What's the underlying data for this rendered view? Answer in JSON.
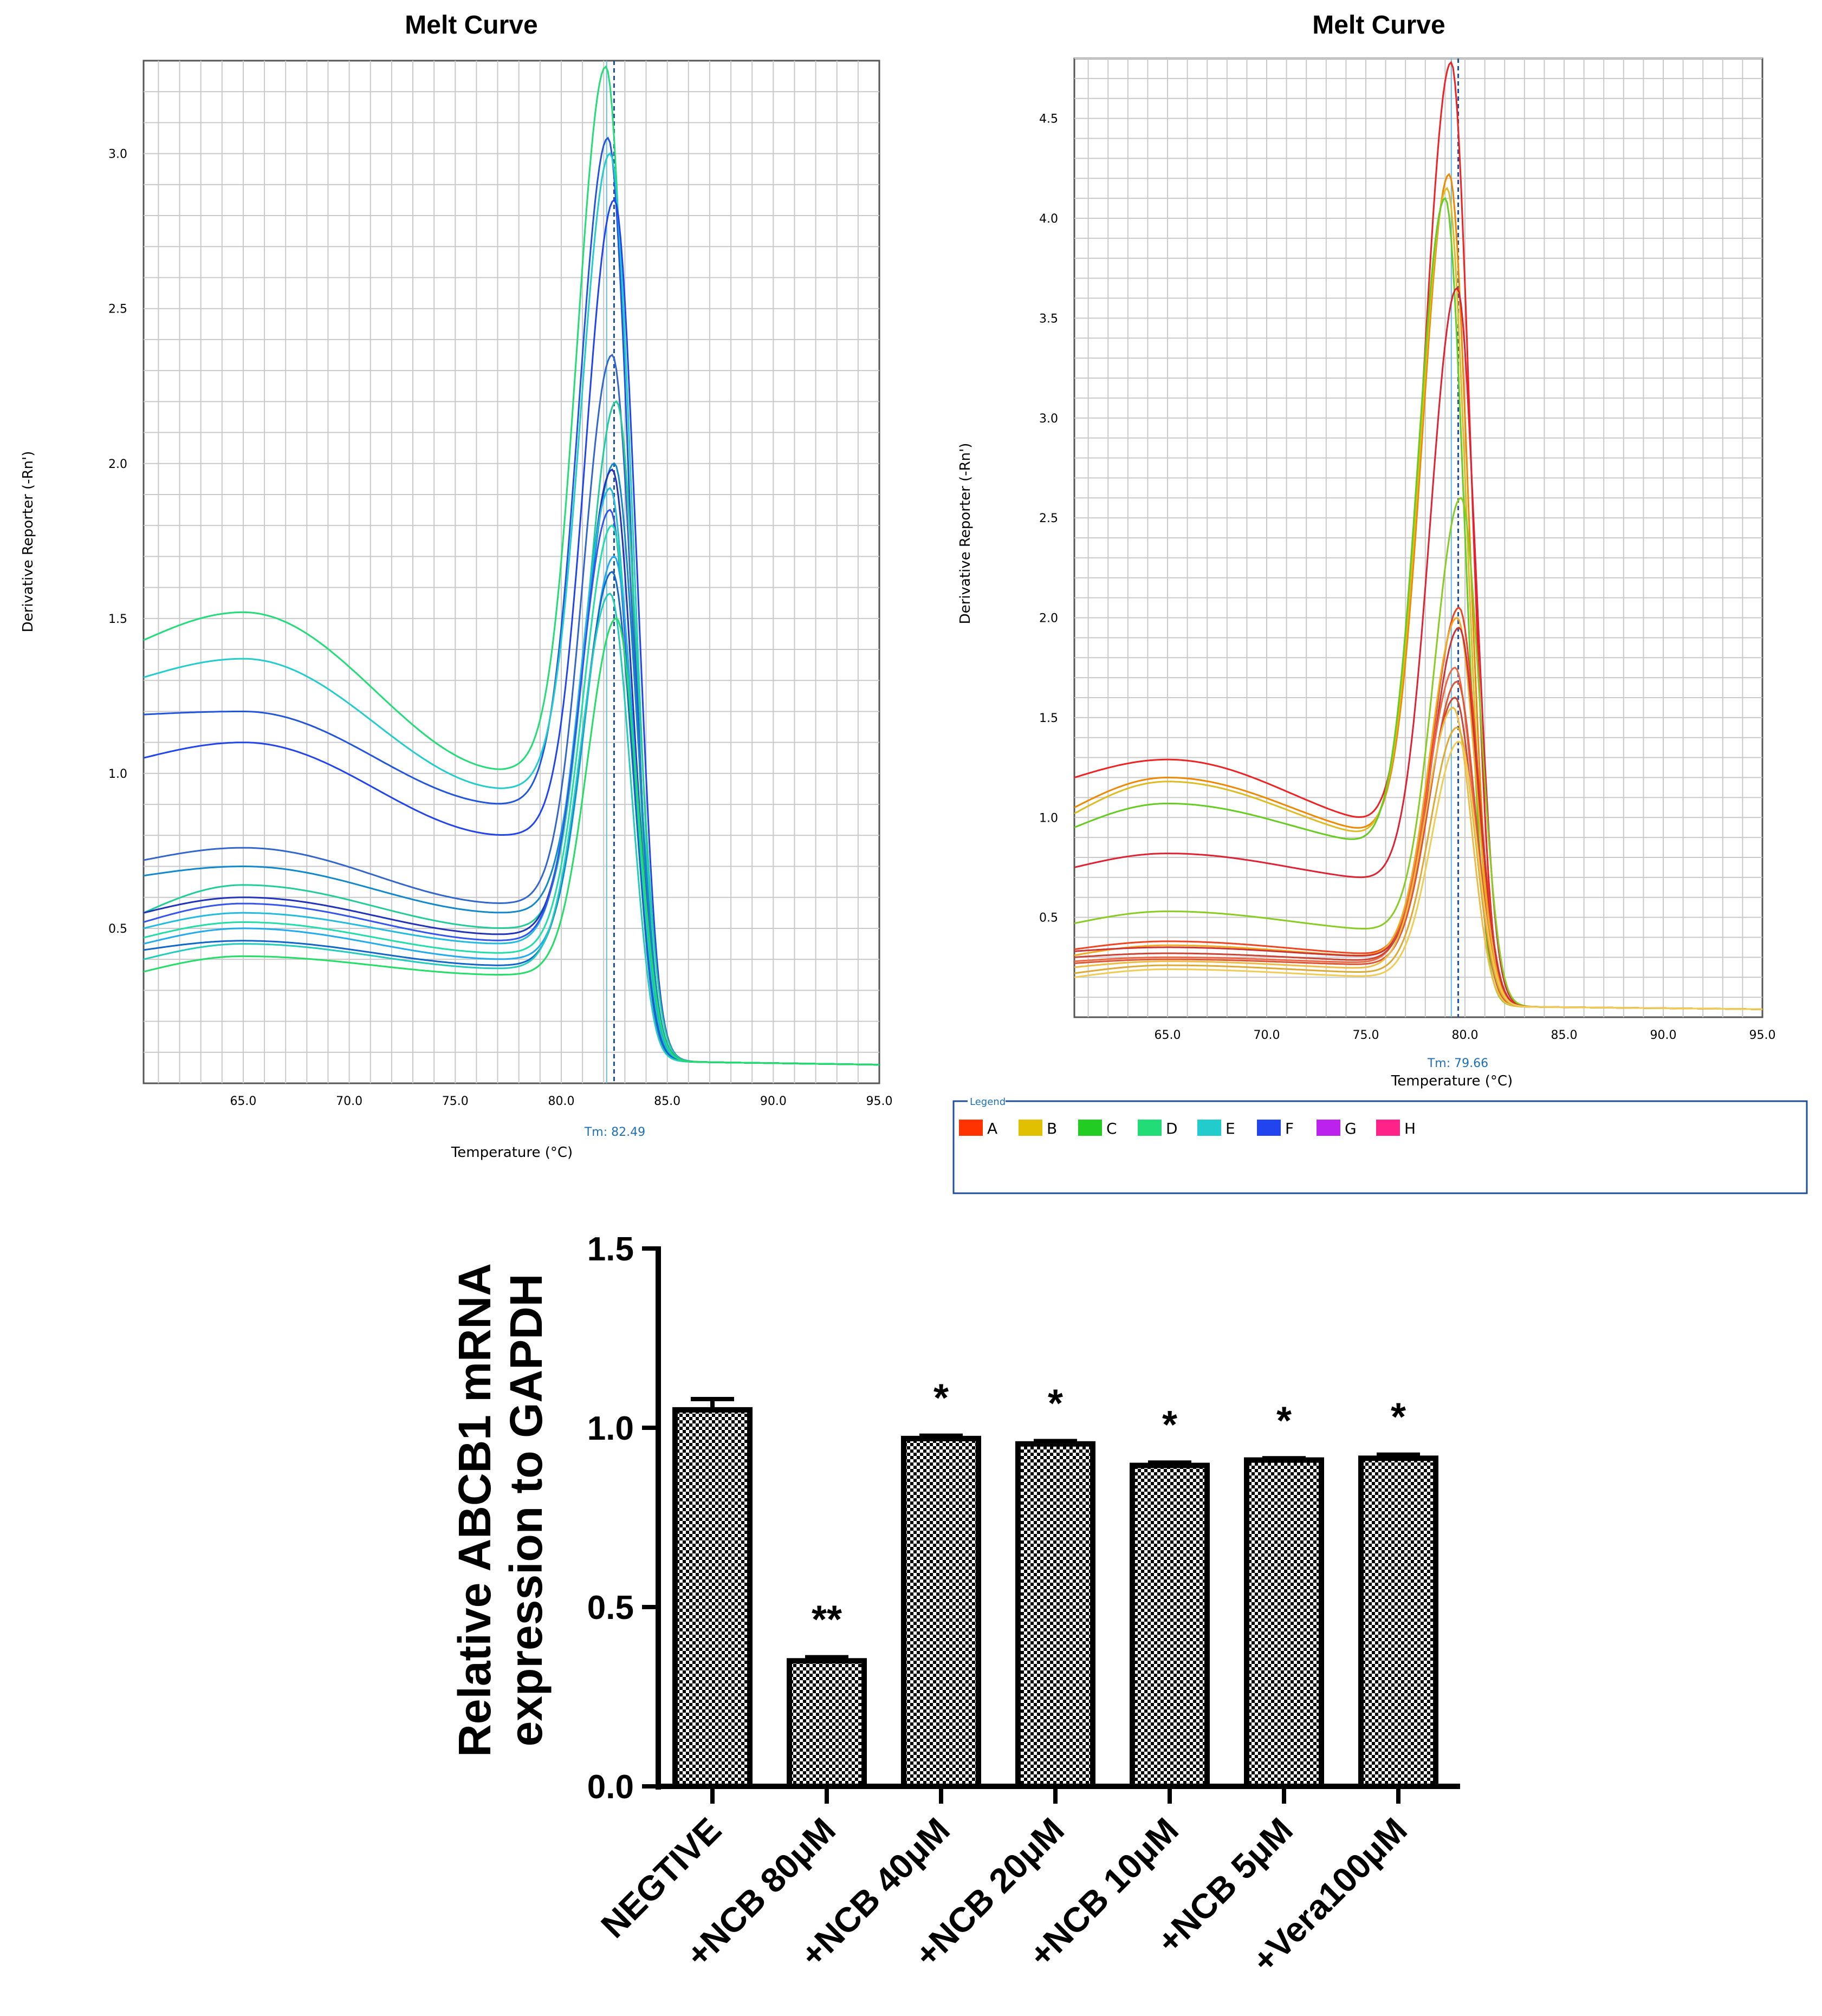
{
  "charts": [
    {
      "title": "Melt Curve",
      "xlabel": "Temperature (°C)",
      "ylabel": "Derivative Reporter (-Rn')",
      "tm_label": "Tm: 82.49"
    },
    {
      "title": "Melt Curve",
      "xlabel": "Temperature (°C)",
      "ylabel": "Derivative Reporter (-Rn')",
      "tm_label": "Tm: 79.66"
    },
    {
      "ylabel_line1": "Relative ABCB1 mRNA",
      "ylabel_line2": "expression to GAPDH"
    }
  ],
  "legend": {
    "title": "Legend",
    "items": [
      {
        "label": "A",
        "color": "#ff3300"
      },
      {
        "label": "B",
        "color": "#e0c000"
      },
      {
        "label": "C",
        "color": "#22cc22"
      },
      {
        "label": "D",
        "color": "#22dd77"
      },
      {
        "label": "E",
        "color": "#22cccc"
      },
      {
        "label": "F",
        "color": "#2244ee"
      },
      {
        "label": "G",
        "color": "#bb22ee"
      },
      {
        "label": "H",
        "color": "#ff2288"
      }
    ]
  },
  "chart_data": [
    {
      "type": "line",
      "title": "Melt Curve",
      "xlabel": "Temperature (°C)",
      "ylabel": "Derivative Reporter (-Rn')",
      "xlim": [
        60.3,
        95.0
      ],
      "ylim": [
        0.0,
        3.3
      ],
      "xticks": [
        "65.0",
        "70.0",
        "75.0",
        "80.0",
        "85.0",
        "90.0",
        "95.0"
      ],
      "yticks": [
        "0.5",
        "1.0",
        "1.5",
        "2.0",
        "2.5",
        "3.0"
      ],
      "grid": true,
      "tm": 82.49,
      "tm_label": "Tm: 82.49",
      "series": [
        {
          "color": "#22dd77",
          "peak_x": 82.1,
          "peak": 3.28,
          "base_start": 1.43,
          "base_mid": 1.52,
          "base_min": 1.01
        },
        {
          "color": "#2255dd",
          "peak_x": 82.2,
          "peak": 3.05,
          "base_start": 1.19,
          "base_mid": 1.2,
          "base_min": 0.9
        },
        {
          "color": "#22cccc",
          "peak_x": 82.3,
          "peak": 3.0,
          "base_start": 1.31,
          "base_mid": 1.37,
          "base_min": 0.95
        },
        {
          "color": "#2244ee",
          "peak_x": 82.5,
          "peak": 2.85,
          "base_start": 1.05,
          "base_mid": 1.1,
          "base_min": 0.8
        },
        {
          "color": "#3366cc",
          "peak_x": 82.4,
          "peak": 2.35,
          "base_start": 0.72,
          "base_mid": 0.76,
          "base_min": 0.58
        },
        {
          "color": "#22cc99",
          "peak_x": 82.6,
          "peak": 2.2,
          "base_start": 0.55,
          "base_mid": 0.64,
          "base_min": 0.5
        },
        {
          "color": "#1188cc",
          "peak_x": 82.5,
          "peak": 2.0,
          "base_start": 0.67,
          "base_mid": 0.7,
          "base_min": 0.55
        },
        {
          "color": "#2233bb",
          "peak_x": 82.4,
          "peak": 1.98,
          "base_start": 0.55,
          "base_mid": 0.6,
          "base_min": 0.48
        },
        {
          "color": "#22bbdd",
          "peak_x": 82.3,
          "peak": 1.92,
          "base_start": 0.5,
          "base_mid": 0.55,
          "base_min": 0.45
        },
        {
          "color": "#3355ee",
          "peak_x": 82.3,
          "peak": 1.85,
          "base_start": 0.52,
          "base_mid": 0.58,
          "base_min": 0.46
        },
        {
          "color": "#22ddaa",
          "peak_x": 82.4,
          "peak": 1.8,
          "base_start": 0.47,
          "base_mid": 0.52,
          "base_min": 0.42
        },
        {
          "color": "#22aaee",
          "peak_x": 82.5,
          "peak": 1.7,
          "base_start": 0.45,
          "base_mid": 0.5,
          "base_min": 0.4
        },
        {
          "color": "#1166cc",
          "peak_x": 82.4,
          "peak": 1.65,
          "base_start": 0.43,
          "base_mid": 0.46,
          "base_min": 0.38
        },
        {
          "color": "#22ccbb",
          "peak_x": 82.3,
          "peak": 1.58,
          "base_start": 0.4,
          "base_mid": 0.45,
          "base_min": 0.37
        },
        {
          "color": "#22dd66",
          "peak_x": 82.6,
          "peak": 1.5,
          "base_start": 0.36,
          "base_mid": 0.41,
          "base_min": 0.35
        }
      ]
    },
    {
      "type": "line",
      "title": "Melt Curve",
      "xlabel": "Temperature (°C)",
      "ylabel": "Derivative Reporter (-Rn')",
      "xlim": [
        60.3,
        95.0
      ],
      "ylim": [
        0.0,
        4.8
      ],
      "xticks": [
        "65.0",
        "70.0",
        "75.0",
        "80.0",
        "85.0",
        "90.0",
        "95.0"
      ],
      "yticks": [
        "0.5",
        "1.0",
        "1.5",
        "2.0",
        "2.5",
        "3.0",
        "3.5",
        "4.0",
        "4.5"
      ],
      "grid": true,
      "tm": 79.66,
      "tm_label": "Tm: 79.66",
      "legend_position": "bottom",
      "series": [
        {
          "color": "#ee2222",
          "peak_x": 79.3,
          "peak": 4.78,
          "base_start": 1.2,
          "base_mid": 1.29,
          "base_min": 0.95
        },
        {
          "color": "#ee8800",
          "peak_x": 79.2,
          "peak": 4.22,
          "base_start": 1.05,
          "base_mid": 1.2,
          "base_min": 0.9
        },
        {
          "color": "#ddbb22",
          "peak_x": 79.1,
          "peak": 4.15,
          "base_start": 1.02,
          "base_mid": 1.18,
          "base_min": 0.88
        },
        {
          "color": "#66cc22",
          "peak_x": 79.0,
          "peak": 4.1,
          "base_start": 0.95,
          "base_mid": 1.07,
          "base_min": 0.85
        },
        {
          "color": "#dd2233",
          "peak_x": 79.6,
          "peak": 3.65,
          "base_start": 0.75,
          "base_mid": 0.82,
          "base_min": 0.68
        },
        {
          "color": "#88cc22",
          "peak_x": 79.8,
          "peak": 2.6,
          "base_start": 0.47,
          "base_mid": 0.53,
          "base_min": 0.43
        },
        {
          "color": "#ee4422",
          "peak_x": 79.7,
          "peak": 2.05,
          "base_start": 0.34,
          "base_mid": 0.38,
          "base_min": 0.31
        },
        {
          "color": "#eeaa22",
          "peak_x": 79.6,
          "peak": 2.0,
          "base_start": 0.31,
          "base_mid": 0.36,
          "base_min": 0.3
        },
        {
          "color": "#cc3333",
          "peak_x": 79.7,
          "peak": 1.95,
          "base_start": 0.33,
          "base_mid": 0.35,
          "base_min": 0.3
        },
        {
          "color": "#ee6644",
          "peak_x": 79.5,
          "peak": 1.75,
          "base_start": 0.28,
          "base_mid": 0.3,
          "base_min": 0.27
        },
        {
          "color": "#dd5533",
          "peak_x": 79.6,
          "peak": 1.68,
          "base_start": 0.27,
          "base_mid": 0.29,
          "base_min": 0.26
        },
        {
          "color": "#cc4433",
          "peak_x": 79.5,
          "peak": 1.6,
          "base_start": 0.3,
          "base_mid": 0.32,
          "base_min": 0.28
        },
        {
          "color": "#eebb44",
          "peak_x": 79.4,
          "peak": 1.55,
          "base_start": 0.25,
          "base_mid": 0.28,
          "base_min": 0.24
        },
        {
          "color": "#ddaa33",
          "peak_x": 79.6,
          "peak": 1.45,
          "base_start": 0.22,
          "base_mid": 0.26,
          "base_min": 0.22
        },
        {
          "color": "#eecc55",
          "peak_x": 79.7,
          "peak": 1.38,
          "base_start": 0.2,
          "base_mid": 0.24,
          "base_min": 0.2
        }
      ]
    },
    {
      "type": "bar",
      "categories": [
        "NEGTIVE",
        "+NCB 80μM",
        "+NCB 40μM",
        "+NCB 20μM",
        "+NCB 10μM",
        "+NCB 5μM",
        "+Vera100μM"
      ],
      "values": [
        1.05,
        0.35,
        0.97,
        0.955,
        0.895,
        0.91,
        0.915
      ],
      "errors": [
        0.03,
        0.01,
        0.008,
        0.008,
        0.008,
        0.005,
        0.01
      ],
      "annotations": [
        "",
        "**",
        "*",
        "*",
        "*",
        "*",
        "*"
      ],
      "ylabel": "Relative ABCB1 mRNA expression to GAPDH",
      "ylim": [
        0.0,
        1.5
      ],
      "yticks": [
        "0.0",
        "0.5",
        "1.0",
        "1.5"
      ],
      "bar_fill": "checkerboard",
      "grid": false
    }
  ]
}
